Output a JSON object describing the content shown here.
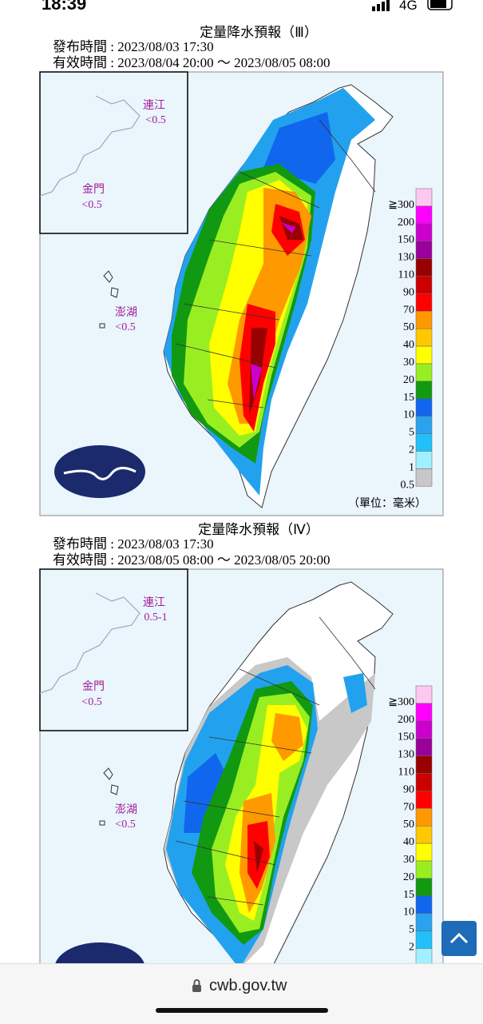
{
  "status_bar": {
    "time": "18:39",
    "network": "4G"
  },
  "panels": [
    {
      "title": "定量降水預報（Ⅲ）",
      "issued": "發布時間 : 2023/08/03 17:30",
      "valid": "有效時間 : 2023/08/04 20:00 ～ 2023/08/05 08:00",
      "islands": [
        {
          "name": "連江",
          "value": "<0.5"
        },
        {
          "name": "金門",
          "value": "<0.5"
        },
        {
          "name": "澎湖",
          "value": "<0.5"
        }
      ],
      "legend": [
        "≧300",
        "200",
        "150",
        "130",
        "110",
        "90",
        "70",
        "50",
        "40",
        "30",
        "20",
        "15",
        "10",
        "5",
        "2",
        "1",
        "0.5"
      ],
      "unit": "（單位：毫米）"
    },
    {
      "title": "定量降水預報（Ⅳ）",
      "issued": "發布時間 : 2023/08/03 17:30",
      "valid": "有效時間 : 2023/08/05 08:00 ～ 2023/08/05 20:00",
      "islands": [
        {
          "name": "連江",
          "value": "0.5-1"
        },
        {
          "name": "金門",
          "value": "<0.5"
        },
        {
          "name": "澎湖",
          "value": "<0.5"
        }
      ],
      "legend": [
        "≧300",
        "200",
        "150",
        "130",
        "110",
        "90",
        "70",
        "50",
        "40",
        "30",
        "20",
        "15",
        "10",
        "5",
        "2"
      ]
    }
  ],
  "address_bar": {
    "url": "cwb.gov.tw"
  }
}
